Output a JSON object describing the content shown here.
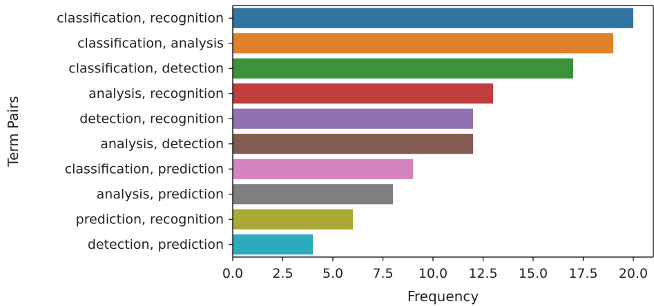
{
  "chart_data": {
    "type": "bar",
    "orientation": "horizontal",
    "title": "",
    "xlabel": "Frequency",
    "ylabel": "Term Pairs",
    "xlim": [
      0,
      21
    ],
    "grid": false,
    "legend": "none",
    "xticks": [
      "0.0",
      "2.5",
      "5.0",
      "7.5",
      "10.0",
      "12.5",
      "15.0",
      "17.5",
      "20.0"
    ],
    "categories": [
      "classification, recognition",
      "classification, analysis",
      "classification, detection",
      "analysis, recognition",
      "detection, recognition",
      "analysis, detection",
      "classification, prediction",
      "analysis, prediction",
      "prediction, recognition",
      "detection, prediction"
    ],
    "values": [
      20,
      19,
      17,
      13,
      12,
      12,
      9,
      8,
      6,
      4
    ],
    "colors": [
      "#3274a1",
      "#e1812c",
      "#3a923a",
      "#c03d3e",
      "#9372b2",
      "#845b53",
      "#d684bd",
      "#7f7f7f",
      "#a9aa35",
      "#2eaabd"
    ]
  }
}
